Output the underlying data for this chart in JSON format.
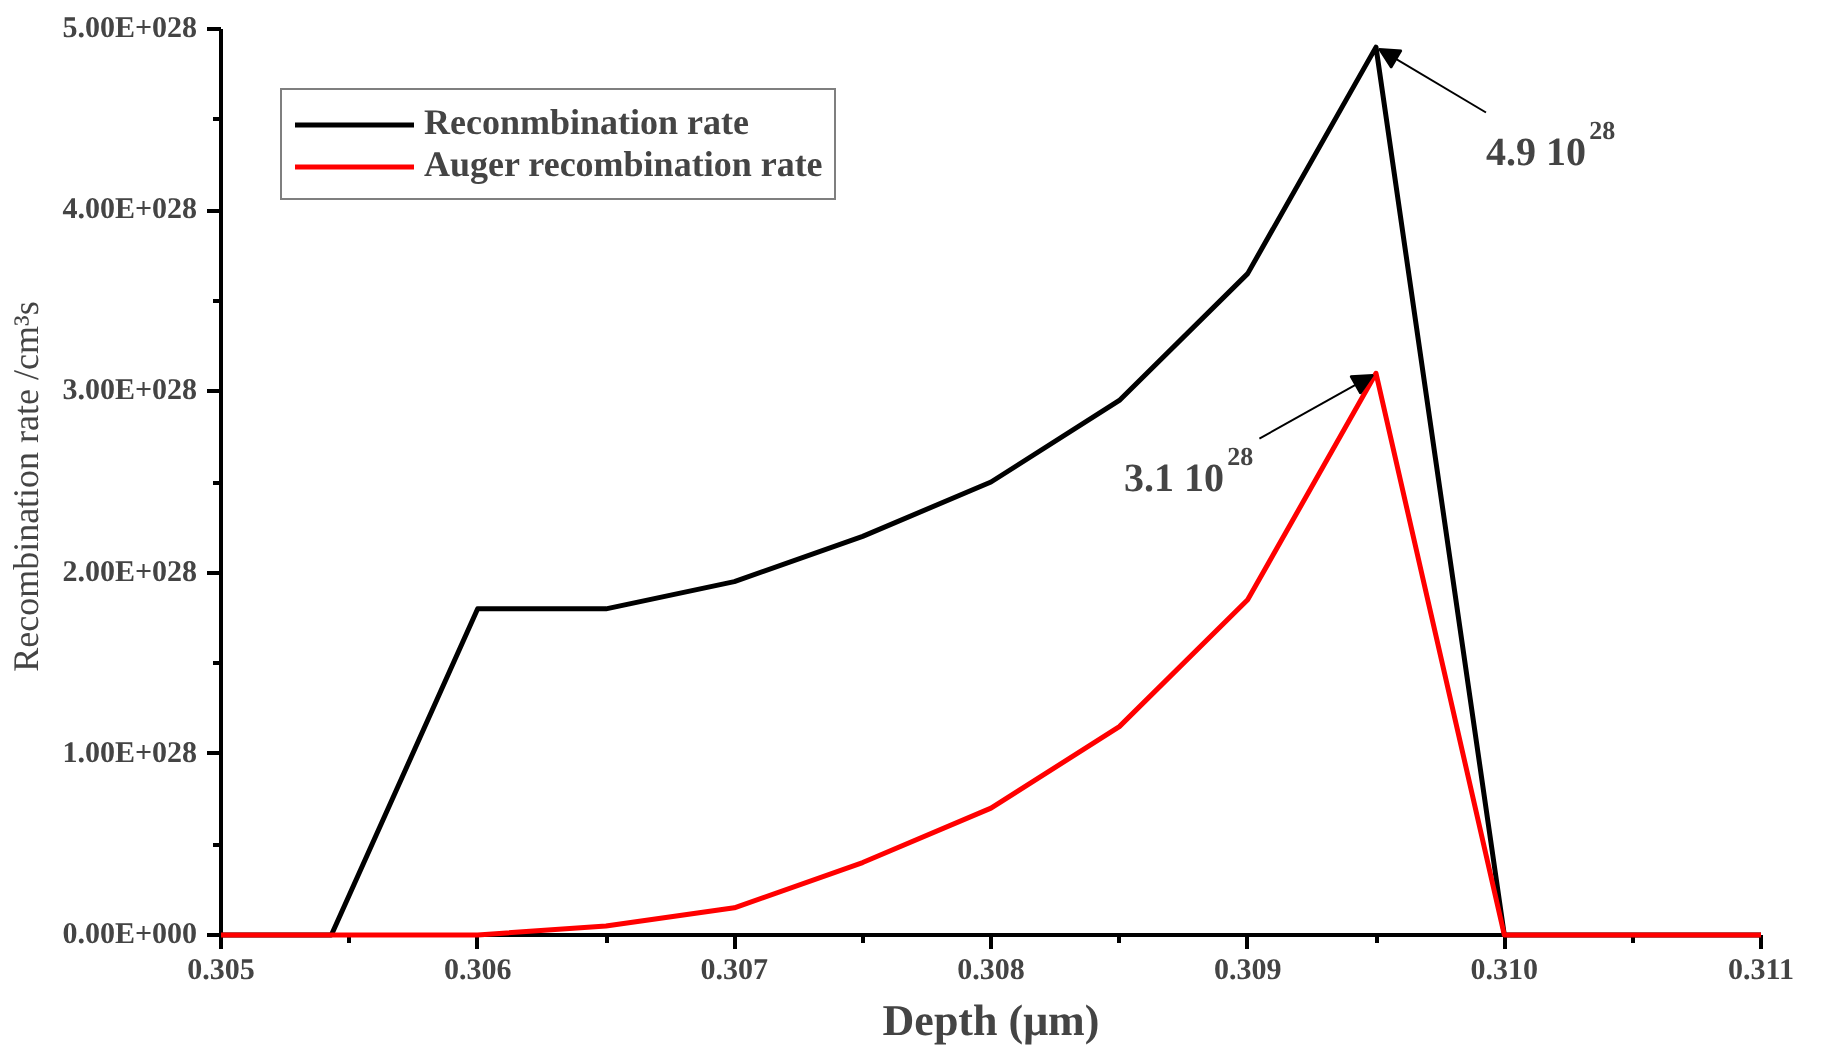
{
  "chart_data": {
    "type": "line",
    "xlabel": "Depth (μm)",
    "ylabel": "Recombination rate  /cm³s",
    "x": [
      0.305,
      0.30543,
      0.306,
      0.3065,
      0.307,
      0.3075,
      0.308,
      0.3085,
      0.309,
      0.3095,
      0.31,
      0.311
    ],
    "series": [
      {
        "name": "Reconmbination rate",
        "color": "#000000",
        "values": [
          0,
          0,
          1.8e+28,
          1.8e+28,
          1.95e+28,
          2.2e+28,
          2.5e+28,
          2.95e+28,
          3.65e+28,
          4.9e+28,
          0,
          0
        ]
      },
      {
        "name": "Auger recombination rate",
        "color": "#ff0000",
        "values": [
          0,
          0,
          0,
          5e+26,
          1.5e+27,
          4e+27,
          7e+27,
          1.15e+28,
          1.85e+28,
          3.1e+28,
          0,
          0
        ]
      }
    ],
    "xlim": [
      0.305,
      0.311
    ],
    "xticks": [
      0.305,
      0.306,
      0.307,
      0.308,
      0.309,
      {
        "value": 0.31,
        "label": "0.310"
      },
      0.311
    ],
    "ylim": [
      0,
      5e+28
    ],
    "yticks": [
      {
        "value": 0,
        "label": "0.00E+000"
      },
      {
        "value": 1e+28,
        "label": "1.00E+028"
      },
      {
        "value": 2e+28,
        "label": "2.00E+028"
      },
      {
        "value": 3e+28,
        "label": "3.00E+028"
      },
      {
        "value": 4e+28,
        "label": "4.00E+028"
      },
      {
        "value": 5e+28,
        "label": "5.00E+028"
      }
    ],
    "annotations": [
      {
        "text": "4.9 10$^{28}$",
        "x": 0.3095,
        "y": 4.9e+28
      },
      {
        "text": "3.1 10$^{28}$",
        "x": 0.3095,
        "y": 3.1e+28
      }
    ],
    "grid": false,
    "legend": "top left",
    "marker": "none",
    "line_style": "solid"
  }
}
